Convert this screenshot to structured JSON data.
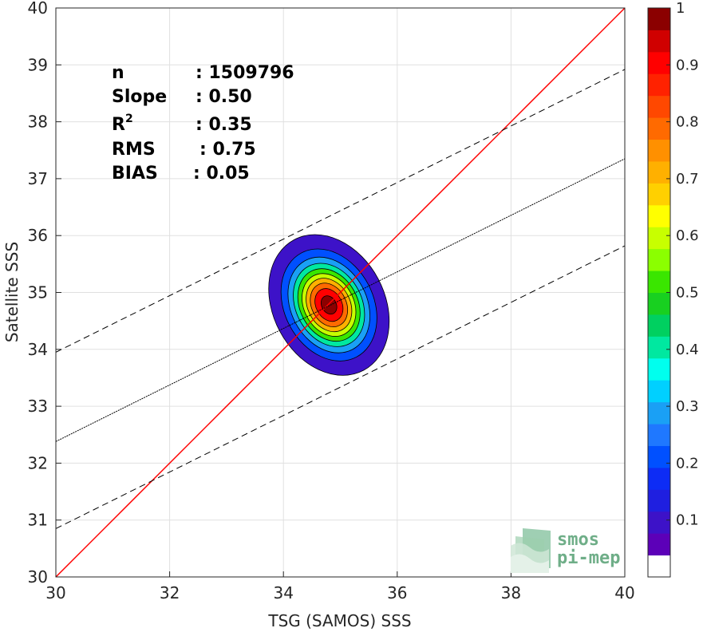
{
  "chart_data": {
    "type": "heatmap",
    "xlabel": "TSG (SAMOS) SSS",
    "ylabel": "Satellite SSS",
    "xlim": [
      30,
      40
    ],
    "ylim": [
      30,
      40
    ],
    "x_ticks": [
      "30",
      "32",
      "34",
      "36",
      "38",
      "40"
    ],
    "y_ticks": [
      "30",
      "31",
      "32",
      "33",
      "34",
      "35",
      "36",
      "37",
      "38",
      "39",
      "40"
    ],
    "grid": true,
    "stats": {
      "n_label": "n",
      "n_value": ": 1509796",
      "slope_label": "Slope",
      "slope_value": ": 0.50",
      "r2_label": "R",
      "r2_sup": "2",
      "r2_value": ": 0.35",
      "rms_label": "RMS",
      "rms_value": ": 0.75",
      "bias_label": "BIAS",
      "bias_value": ": 0.05"
    },
    "lines": [
      {
        "name": "1:1",
        "style": "solid",
        "color": "#ff0000",
        "x": [
          30,
          40
        ],
        "y": [
          30,
          40
        ]
      },
      {
        "name": "fit",
        "style": "dotted",
        "color": "#000000",
        "x": [
          30,
          40
        ],
        "y": [
          32.38,
          37.35
        ]
      },
      {
        "name": "upper",
        "style": "dashed",
        "color": "#000000",
        "x": [
          30,
          40
        ],
        "y": [
          33.95,
          38.92
        ]
      },
      {
        "name": "lower",
        "style": "dashed",
        "color": "#000000",
        "x": [
          30,
          40
        ],
        "y": [
          30.85,
          35.82
        ]
      }
    ],
    "density": {
      "center": [
        34.8,
        34.78
      ],
      "levels": [
        0.05,
        0.15,
        0.25,
        0.35,
        0.45,
        0.55,
        0.65,
        0.75,
        0.85,
        0.95
      ]
    },
    "colorbar": {
      "min": 0,
      "max": 1,
      "ticks": [
        "0.1",
        "0.2",
        "0.3",
        "0.4",
        "0.5",
        "0.6",
        "0.7",
        "0.8",
        "0.9",
        "1"
      ],
      "colors": [
        "#ffffff",
        "#5c00b8",
        "#3d12c8",
        "#1f1fe0",
        "#0d2cf5",
        "#0050ff",
        "#1f78ff",
        "#1aa0f5",
        "#00d0ff",
        "#00ffee",
        "#00e8a0",
        "#00d060",
        "#18d020",
        "#3ae600",
        "#8bff00",
        "#c8ff00",
        "#ffff00",
        "#ffd000",
        "#ffb000",
        "#ff9000",
        "#ff6a00",
        "#ff4800",
        "#ff2200",
        "#ff0000",
        "#d00000",
        "#8b0000"
      ]
    },
    "logo": {
      "line1": "smos",
      "line2": "pi-mep"
    }
  }
}
